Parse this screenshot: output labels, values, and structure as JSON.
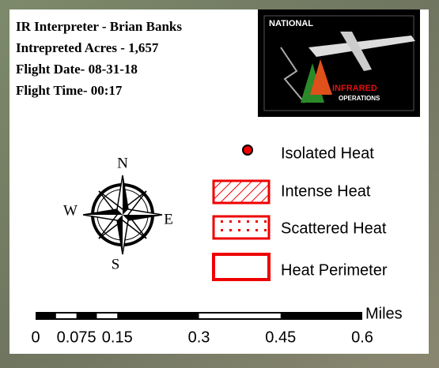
{
  "info": {
    "lines": [
      "IR Interpreter - Brian Banks",
      "Intrepreted Acres - 1,657",
      "Flight Date- 08-31-18",
      "Flight Time- 00:17"
    ]
  },
  "logo": {
    "top": "NATIONAL",
    "middle": "INFRARED",
    "bottom": "OPERATIONS"
  },
  "compass": {
    "north": "N",
    "east": "E",
    "south": "S",
    "west": "W"
  },
  "legend": {
    "items": [
      "Isolated Heat",
      "Intense Heat",
      "Scattered Heat",
      "Heat Perimeter"
    ]
  },
  "scale_bar": {
    "unit": "Miles",
    "ticks": [
      0,
      0.075,
      0.15,
      0.3,
      0.45,
      0.6
    ]
  }
}
